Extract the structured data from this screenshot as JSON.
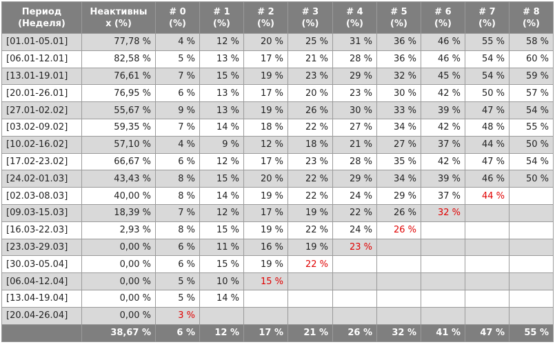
{
  "headers": [
    {
      "line1": "Период",
      "line2": "(Неделя)"
    },
    {
      "line1": "Неактивны",
      "line2": "х (%)"
    },
    {
      "line1": "# 0",
      "line2": "(%)"
    },
    {
      "line1": "# 1",
      "line2": "(%)"
    },
    {
      "line1": "# 2",
      "line2": "(%)"
    },
    {
      "line1": "# 3",
      "line2": "(%)"
    },
    {
      "line1": "# 4",
      "line2": "(%)"
    },
    {
      "line1": "# 5",
      "line2": "(%)"
    },
    {
      "line1": "# 6",
      "line2": "(%)"
    },
    {
      "line1": "# 7",
      "line2": "(%)"
    },
    {
      "line1": "# 8",
      "line2": "(%)"
    }
  ],
  "rows": [
    {
      "period": "[01.01-05.01]",
      "inactive": "77,78 %",
      "weeks": [
        "4 %",
        "12 %",
        "20 %",
        "25 %",
        "31 %",
        "36 %",
        "46 %",
        "55 %",
        "58 %"
      ],
      "red_index": -1
    },
    {
      "period": "[06.01-12.01]",
      "inactive": "82,58 %",
      "weeks": [
        "5 %",
        "13 %",
        "17 %",
        "21 %",
        "28 %",
        "36 %",
        "46 %",
        "54 %",
        "60 %"
      ],
      "red_index": -1
    },
    {
      "period": "[13.01-19.01]",
      "inactive": "76,61 %",
      "weeks": [
        "7 %",
        "15 %",
        "19 %",
        "23 %",
        "29 %",
        "32 %",
        "45 %",
        "54 %",
        "59 %"
      ],
      "red_index": -1
    },
    {
      "period": "[20.01-26.01]",
      "inactive": "76,95 %",
      "weeks": [
        "6 %",
        "13 %",
        "17 %",
        "20 %",
        "23 %",
        "30 %",
        "42 %",
        "50 %",
        "57 %"
      ],
      "red_index": -1
    },
    {
      "period": "[27.01-02.02]",
      "inactive": "55,67 %",
      "weeks": [
        "9 %",
        "13 %",
        "19 %",
        "26 %",
        "30 %",
        "33 %",
        "39 %",
        "47 %",
        "54 %"
      ],
      "red_index": -1
    },
    {
      "period": "[03.02-09.02]",
      "inactive": "59,35 %",
      "weeks": [
        "7 %",
        "14 %",
        "18 %",
        "22 %",
        "27 %",
        "34 %",
        "42 %",
        "48 %",
        "55 %"
      ],
      "red_index": -1
    },
    {
      "period": "[10.02-16.02]",
      "inactive": "57,10 %",
      "weeks": [
        "4 %",
        "9 %",
        "12 %",
        "18 %",
        "21 %",
        "27 %",
        "37 %",
        "44 %",
        "50 %"
      ],
      "red_index": -1
    },
    {
      "period": "[17.02-23.02]",
      "inactive": "66,67 %",
      "weeks": [
        "6 %",
        "12 %",
        "17 %",
        "23 %",
        "28 %",
        "35 %",
        "42 %",
        "47 %",
        "54 %"
      ],
      "red_index": -1
    },
    {
      "period": "[24.02-01.03]",
      "inactive": "43,43 %",
      "weeks": [
        "8 %",
        "15 %",
        "20 %",
        "22 %",
        "29 %",
        "34 %",
        "39 %",
        "46 %",
        "50 %"
      ],
      "red_index": -1
    },
    {
      "period": "[02.03-08.03]",
      "inactive": "40,00 %",
      "weeks": [
        "8 %",
        "14 %",
        "19 %",
        "22 %",
        "24 %",
        "29 %",
        "37 %",
        "44 %",
        ""
      ],
      "red_index": 7
    },
    {
      "period": "[09.03-15.03]",
      "inactive": "18,39 %",
      "weeks": [
        "7 %",
        "12 %",
        "17 %",
        "19 %",
        "22 %",
        "26 %",
        "32 %",
        "",
        ""
      ],
      "red_index": 6
    },
    {
      "period": "[16.03-22.03]",
      "inactive": "2,93 %",
      "weeks": [
        "8 %",
        "15 %",
        "19 %",
        "22 %",
        "24 %",
        "26 %",
        "",
        "",
        ""
      ],
      "red_index": 5
    },
    {
      "period": "[23.03-29.03]",
      "inactive": "0,00 %",
      "weeks": [
        "6 %",
        "11 %",
        "16 %",
        "19 %",
        "23 %",
        "",
        "",
        "",
        ""
      ],
      "red_index": 4
    },
    {
      "period": "[30.03-05.04]",
      "inactive": "0,00 %",
      "weeks": [
        "6 %",
        "15 %",
        "19 %",
        "22 %",
        "",
        "",
        "",
        "",
        ""
      ],
      "red_index": 3
    },
    {
      "period": "[06.04-12.04]",
      "inactive": "0,00 %",
      "weeks": [
        "5 %",
        "10 %",
        "15 %",
        "",
        "",
        "",
        "",
        "",
        ""
      ],
      "red_index": 2
    },
    {
      "period": "[13.04-19.04]",
      "inactive": "0,00 %",
      "weeks": [
        "5 %",
        "14 %",
        "",
        "",
        "",
        "",
        "",
        "",
        ""
      ],
      "red_index": -1
    },
    {
      "period": "[20.04-26.04]",
      "inactive": "0,00 %",
      "weeks": [
        "3 %",
        "",
        "",
        "",
        "",
        "",
        "",
        "",
        ""
      ],
      "red_index": 0
    }
  ],
  "totals": {
    "period": "",
    "inactive": "38,67 %",
    "weeks": [
      "6 %",
      "12 %",
      "17 %",
      "21 %",
      "26 %",
      "32 %",
      "41 %",
      "47 %",
      "55 %"
    ]
  },
  "colors": {
    "header_bg": "#7f7f7f",
    "shaded_row": "#d9d9d9",
    "highlight_text": "#e00000"
  }
}
